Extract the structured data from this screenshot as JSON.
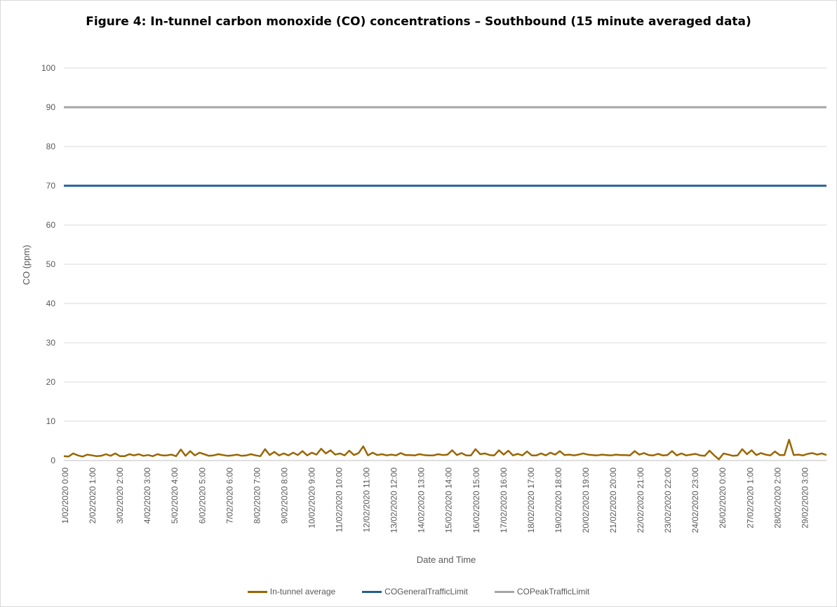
{
  "chart_data": {
    "type": "line",
    "title": "Figure 4: In-tunnel carbon monoxide (CO) concentrations – Southbound (15 minute averaged data)",
    "xlabel": "Date and Time",
    "ylabel": "CO (ppm)",
    "ylim": [
      0,
      100
    ],
    "yticks": [
      0,
      10,
      20,
      30,
      40,
      50,
      60,
      70,
      80,
      90,
      100
    ],
    "grid": "horizontal",
    "legend_position": "bottom",
    "x_tick_labels": [
      "1/02/2020 0:00",
      "2/02/2020 1:00",
      "3/02/2020 2:00",
      "4/02/2020 3:00",
      "5/02/2020 4:00",
      "6/02/2020 5:00",
      "7/02/2020 6:00",
      "8/02/2020 7:00",
      "9/02/2020 8:00",
      "10/02/2020 9:00",
      "11/02/2020 10:00",
      "12/02/2020 11:00",
      "13/02/2020 12:00",
      "14/02/2020 13:00",
      "15/02/2020 14:00",
      "16/02/2020 15:00",
      "17/02/2020 16:00",
      "18/02/2020 17:00",
      "19/02/2020 18:00",
      "20/02/2020 19:00",
      "21/02/2020 20:00",
      "22/02/2020 21:00",
      "23/02/2020 22:00",
      "24/02/2020 23:00",
      "26/02/2020 0:00",
      "27/02/2020 1:00",
      "28/02/2020 2:00",
      "29/02/2020 3:00"
    ],
    "series": [
      {
        "name": "In-tunnel average",
        "color": "#996600",
        "values": [
          1.1,
          1.0,
          1.8,
          1.3,
          1.0,
          1.5,
          1.3,
          1.1,
          1.2,
          1.6,
          1.2,
          1.8,
          1.1,
          1.1,
          1.6,
          1.3,
          1.6,
          1.2,
          1.4,
          1.1,
          1.6,
          1.3,
          1.3,
          1.5,
          1.1,
          2.8,
          1.2,
          2.4,
          1.3,
          2.0,
          1.6,
          1.2,
          1.3,
          1.6,
          1.4,
          1.2,
          1.3,
          1.5,
          1.2,
          1.3,
          1.6,
          1.3,
          1.1,
          2.9,
          1.4,
          2.2,
          1.3,
          1.8,
          1.3,
          2.0,
          1.4,
          2.4,
          1.3,
          2.0,
          1.5,
          3.0,
          1.8,
          2.6,
          1.5,
          1.8,
          1.3,
          2.5,
          1.4,
          1.9,
          3.6,
          1.3,
          2.0,
          1.4,
          1.6,
          1.3,
          1.5,
          1.3,
          1.9,
          1.4,
          1.4,
          1.3,
          1.6,
          1.4,
          1.3,
          1.3,
          1.6,
          1.4,
          1.5,
          2.6,
          1.4,
          1.9,
          1.3,
          1.3,
          2.9,
          1.6,
          1.8,
          1.4,
          1.3,
          2.6,
          1.5,
          2.5,
          1.3,
          1.7,
          1.3,
          2.3,
          1.3,
          1.3,
          1.8,
          1.3,
          2.0,
          1.5,
          2.4,
          1.4,
          1.5,
          1.3,
          1.5,
          1.8,
          1.5,
          1.4,
          1.3,
          1.5,
          1.4,
          1.3,
          1.5,
          1.4,
          1.4,
          1.3,
          2.4,
          1.5,
          1.9,
          1.4,
          1.3,
          1.7,
          1.3,
          1.4,
          2.4,
          1.3,
          1.8,
          1.3,
          1.5,
          1.7,
          1.3,
          1.2,
          2.5,
          1.3,
          0.3,
          1.8,
          1.5,
          1.2,
          1.3,
          2.9,
          1.6,
          2.6,
          1.4,
          1.9,
          1.5,
          1.3,
          2.3,
          1.4,
          1.4,
          5.3,
          1.4,
          1.5,
          1.3,
          1.7,
          1.9,
          1.5,
          1.8,
          1.4
        ]
      },
      {
        "name": "COGeneralTrafficLimit",
        "color": "#255e91",
        "constant": 70
      },
      {
        "name": "COPeakTrafficLimit",
        "color": "#a5a5a5",
        "constant": 90
      }
    ]
  }
}
